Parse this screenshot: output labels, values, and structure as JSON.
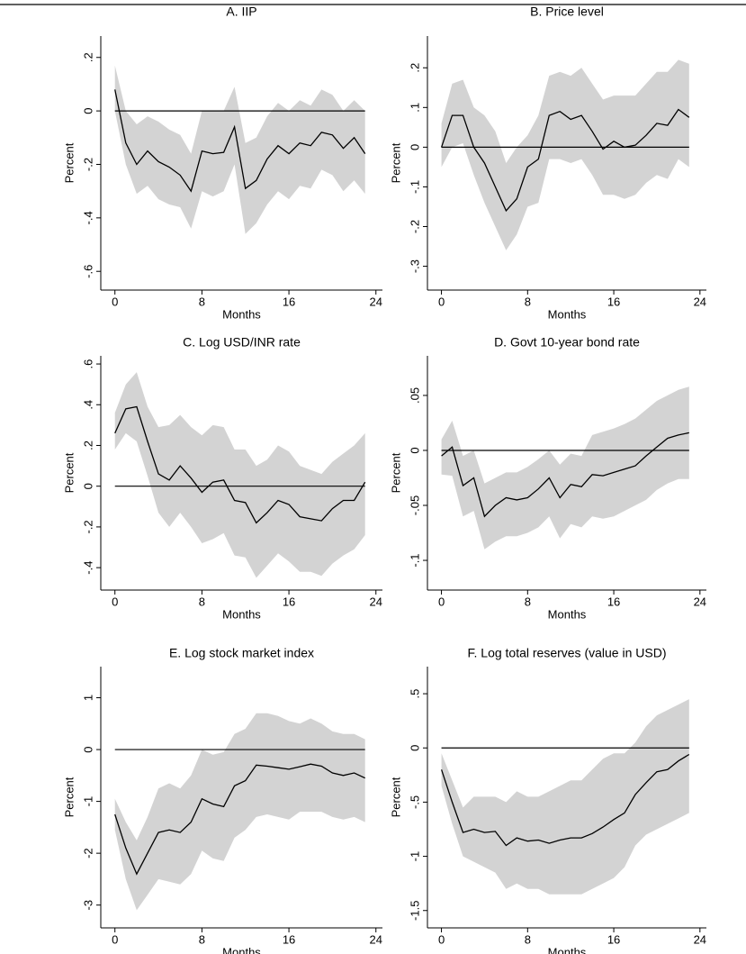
{
  "chart_data": [
    {
      "type": "line",
      "title": "A. IIP",
      "xlabel": "Months",
      "ylabel": "Percent",
      "x": [
        0,
        1,
        2,
        3,
        4,
        5,
        6,
        7,
        8,
        9,
        10,
        11,
        12,
        13,
        14,
        15,
        16,
        17,
        18,
        19,
        20,
        21,
        22,
        23
      ],
      "values": [
        0.08,
        -0.12,
        -0.2,
        -0.15,
        -0.19,
        -0.21,
        -0.24,
        -0.3,
        -0.15,
        -0.16,
        -0.155,
        -0.06,
        -0.29,
        -0.26,
        -0.18,
        -0.13,
        -0.16,
        -0.12,
        -0.13,
        -0.08,
        -0.09,
        -0.14,
        -0.1,
        -0.16
      ],
      "upper": [
        0.17,
        0.0,
        -0.05,
        -0.02,
        -0.04,
        -0.07,
        -0.09,
        -0.16,
        0.0,
        0.0,
        0.0,
        0.09,
        -0.12,
        -0.1,
        -0.02,
        0.03,
        0.0,
        0.04,
        0.02,
        0.08,
        0.06,
        0.0,
        0.04,
        0.0
      ],
      "lower": [
        0.0,
        -0.2,
        -0.31,
        -0.28,
        -0.33,
        -0.35,
        -0.36,
        -0.44,
        -0.3,
        -0.32,
        -0.3,
        -0.2,
        -0.46,
        -0.42,
        -0.35,
        -0.3,
        -0.33,
        -0.28,
        -0.29,
        -0.22,
        -0.24,
        -0.3,
        -0.26,
        -0.31
      ],
      "color": "#000000",
      "band_color": "#d3d3d3",
      "hline": 0,
      "xlim": [
        -1.3,
        24.6
      ],
      "xticks": [
        0,
        8,
        16,
        24
      ],
      "ylim": [
        -0.67,
        0.28
      ],
      "yticks": [
        {
          "value": 0.2,
          "label": ".2"
        },
        0,
        {
          "value": -0.2,
          "label": "-.2"
        },
        {
          "value": -0.4,
          "label": "-.4"
        },
        {
          "value": -0.6,
          "label": "-.6"
        }
      ]
    },
    {
      "type": "line",
      "title": "B. Price level",
      "xlabel": "Months",
      "ylabel": "Percent",
      "x": [
        0,
        1,
        2,
        3,
        4,
        5,
        6,
        7,
        8,
        9,
        10,
        11,
        12,
        13,
        14,
        15,
        16,
        17,
        18,
        19,
        20,
        21,
        22,
        23
      ],
      "values": [
        0,
        0.08,
        0.08,
        0,
        -0.04,
        -0.1,
        -0.16,
        -0.13,
        -0.05,
        -0.03,
        0.08,
        0.09,
        0.07,
        0.08,
        0.04,
        -0.005,
        0.015,
        0,
        0.005,
        0.03,
        0.06,
        0.055,
        0.095,
        0.075
      ],
      "upper": [
        0.06,
        0.16,
        0.17,
        0.1,
        0.08,
        0.04,
        -0.04,
        0,
        0.03,
        0.08,
        0.18,
        0.19,
        0.18,
        0.2,
        0.16,
        0.12,
        0.13,
        0.13,
        0.13,
        0.16,
        0.19,
        0.19,
        0.22,
        0.21
      ],
      "lower": [
        -0.05,
        0.0,
        0.01,
        -0.07,
        -0.14,
        -0.2,
        -0.26,
        -0.22,
        -0.15,
        -0.14,
        -0.03,
        -0.03,
        -0.04,
        -0.03,
        -0.07,
        -0.12,
        -0.12,
        -0.13,
        -0.12,
        -0.09,
        -0.07,
        -0.08,
        -0.03,
        -0.05
      ],
      "color": "#000000",
      "band_color": "#d3d3d3",
      "hline": 0,
      "xlim": [
        -1.3,
        24.6
      ],
      "xticks": [
        0,
        8,
        16,
        24
      ],
      "ylim": [
        -0.36,
        0.28
      ],
      "yticks": [
        {
          "value": 0.2,
          "label": ".2"
        },
        {
          "value": 0.1,
          "label": ".1"
        },
        0,
        {
          "value": -0.1,
          "label": "-.1"
        },
        {
          "value": -0.2,
          "label": "-.2"
        },
        {
          "value": -0.3,
          "label": "-.3"
        }
      ]
    },
    {
      "type": "line",
      "title": "C. Log USD/INR rate",
      "xlabel": "Months",
      "ylabel": "Percent",
      "x": [
        0,
        1,
        2,
        3,
        4,
        5,
        6,
        7,
        8,
        9,
        10,
        11,
        12,
        13,
        14,
        15,
        16,
        17,
        18,
        19,
        20,
        21,
        22,
        23
      ],
      "values": [
        0.26,
        0.38,
        0.39,
        0.22,
        0.06,
        0.03,
        0.1,
        0.04,
        -0.03,
        0.02,
        0.03,
        -0.07,
        -0.08,
        -0.18,
        -0.13,
        -0.07,
        -0.09,
        -0.15,
        -0.16,
        -0.17,
        -0.11,
        -0.07,
        -0.07,
        0.02
      ],
      "upper": [
        0.36,
        0.5,
        0.56,
        0.39,
        0.29,
        0.3,
        0.35,
        0.29,
        0.25,
        0.3,
        0.29,
        0.18,
        0.18,
        0.1,
        0.13,
        0.2,
        0.17,
        0.1,
        0.08,
        0.06,
        0.12,
        0.16,
        0.2,
        0.26
      ],
      "lower": [
        0.18,
        0.26,
        0.22,
        0.05,
        -0.13,
        -0.2,
        -0.13,
        -0.2,
        -0.28,
        -0.26,
        -0.23,
        -0.34,
        -0.35,
        -0.45,
        -0.39,
        -0.33,
        -0.37,
        -0.42,
        -0.42,
        -0.44,
        -0.38,
        -0.34,
        -0.31,
        -0.24
      ],
      "color": "#000000",
      "band_color": "#d3d3d3",
      "hline": 0,
      "xlim": [
        -1.3,
        24.6
      ],
      "xticks": [
        0,
        8,
        16,
        24
      ],
      "ylim": [
        -0.51,
        0.64
      ],
      "yticks": [
        {
          "value": 0.6,
          "label": ".6"
        },
        {
          "value": 0.4,
          "label": ".4"
        },
        {
          "value": 0.2,
          "label": ".2"
        },
        0,
        {
          "value": -0.2,
          "label": "-.2"
        },
        {
          "value": -0.4,
          "label": "-.4"
        }
      ]
    },
    {
      "type": "line",
      "title": "D. Govt 10-year bond rate",
      "xlabel": "Months",
      "ylabel": "Percent",
      "x": [
        0,
        1,
        2,
        3,
        4,
        5,
        6,
        7,
        8,
        9,
        10,
        11,
        12,
        13,
        14,
        15,
        16,
        17,
        18,
        19,
        20,
        21,
        22,
        23
      ],
      "values": [
        -0.005,
        0.003,
        -0.032,
        -0.025,
        -0.06,
        -0.05,
        -0.043,
        -0.045,
        -0.043,
        -0.035,
        -0.025,
        -0.043,
        -0.031,
        -0.033,
        -0.022,
        -0.023,
        -0.02,
        -0.017,
        -0.014,
        -0.005,
        0.003,
        0.011,
        0.014,
        0.016
      ],
      "upper": [
        0.01,
        0.027,
        -0.005,
        0.0,
        -0.03,
        -0.025,
        -0.02,
        -0.02,
        -0.015,
        -0.008,
        0,
        -0.013,
        -0.003,
        -0.005,
        0.014,
        0.017,
        0.02,
        0.024,
        0.029,
        0.037,
        0.045,
        0.05,
        0.055,
        0.058
      ],
      "lower": [
        -0.022,
        -0.023,
        -0.06,
        -0.055,
        -0.09,
        -0.083,
        -0.078,
        -0.078,
        -0.075,
        -0.07,
        -0.06,
        -0.08,
        -0.067,
        -0.07,
        -0.06,
        -0.062,
        -0.06,
        -0.055,
        -0.05,
        -0.045,
        -0.036,
        -0.03,
        -0.026,
        -0.026
      ],
      "color": "#000000",
      "band_color": "#d3d3d3",
      "hline": 0,
      "xlim": [
        -1.3,
        24.6
      ],
      "xticks": [
        0,
        8,
        16,
        24
      ],
      "ylim": [
        -0.127,
        0.086
      ],
      "yticks": [
        {
          "value": 0.05,
          "label": ".05"
        },
        0,
        {
          "value": -0.05,
          "label": "-.05"
        },
        {
          "value": -0.1,
          "label": "-.1"
        }
      ]
    },
    {
      "type": "line",
      "title": "E. Log stock market index",
      "xlabel": "Months",
      "ylabel": "Percent",
      "x": [
        0,
        1,
        2,
        3,
        4,
        5,
        6,
        7,
        8,
        9,
        10,
        11,
        12,
        13,
        14,
        15,
        16,
        17,
        18,
        19,
        20,
        21,
        22,
        23
      ],
      "values": [
        -1.25,
        -1.9,
        -2.4,
        -2.0,
        -1.6,
        -1.55,
        -1.6,
        -1.4,
        -0.95,
        -1.05,
        -1.1,
        -0.7,
        -0.6,
        -0.3,
        -0.32,
        -0.35,
        -0.38,
        -0.33,
        -0.28,
        -0.32,
        -0.45,
        -0.5,
        -0.45,
        -0.55
      ],
      "upper": [
        -0.95,
        -1.4,
        -1.75,
        -1.3,
        -0.75,
        -0.65,
        -0.75,
        -0.5,
        0.0,
        -0.1,
        -0.05,
        0.3,
        0.4,
        0.7,
        0.7,
        0.65,
        0.55,
        0.5,
        0.6,
        0.5,
        0.35,
        0.3,
        0.3,
        0.2
      ],
      "lower": [
        -1.55,
        -2.5,
        -3.1,
        -2.8,
        -2.5,
        -2.55,
        -2.6,
        -2.4,
        -1.95,
        -2.1,
        -2.15,
        -1.7,
        -1.55,
        -1.3,
        -1.25,
        -1.3,
        -1.35,
        -1.2,
        -1.2,
        -1.2,
        -1.3,
        -1.35,
        -1.3,
        -1.4
      ],
      "color": "#000000",
      "band_color": "#d3d3d3",
      "hline": 0,
      "xlim": [
        -1.3,
        24.6
      ],
      "xticks": [
        0,
        8,
        16,
        24
      ],
      "ylim": [
        -3.44,
        1.6
      ],
      "yticks": [
        1,
        0,
        -1,
        -2,
        -3
      ]
    },
    {
      "type": "line",
      "title": "F. Log total reserves (value in USD)",
      "xlabel": "Months",
      "ylabel": "Percent",
      "x": [
        0,
        1,
        2,
        3,
        4,
        5,
        6,
        7,
        8,
        9,
        10,
        11,
        12,
        13,
        14,
        15,
        16,
        17,
        18,
        19,
        20,
        21,
        22,
        23
      ],
      "values": [
        -0.2,
        -0.5,
        -0.78,
        -0.75,
        -0.78,
        -0.77,
        -0.9,
        -0.83,
        -0.86,
        -0.85,
        -0.88,
        -0.85,
        -0.83,
        -0.83,
        -0.79,
        -0.73,
        -0.66,
        -0.6,
        -0.43,
        -0.32,
        -0.22,
        -0.2,
        -0.12,
        -0.06
      ],
      "upper": [
        -0.05,
        -0.3,
        -0.55,
        -0.45,
        -0.45,
        -0.45,
        -0.5,
        -0.4,
        -0.45,
        -0.45,
        -0.4,
        -0.35,
        -0.3,
        -0.3,
        -0.2,
        -0.1,
        -0.05,
        -0.05,
        0.05,
        0.2,
        0.3,
        0.35,
        0.4,
        0.45
      ],
      "lower": [
        -0.35,
        -0.7,
        -1.0,
        -1.05,
        -1.1,
        -1.15,
        -1.3,
        -1.25,
        -1.3,
        -1.3,
        -1.35,
        -1.35,
        -1.35,
        -1.35,
        -1.3,
        -1.25,
        -1.2,
        -1.1,
        -0.9,
        -0.8,
        -0.75,
        -0.7,
        -0.65,
        -0.6
      ],
      "color": "#000000",
      "band_color": "#d3d3d3",
      "hline": 0,
      "xlim": [
        -1.3,
        24.6
      ],
      "xticks": [
        0,
        8,
        16,
        24
      ],
      "ylim": [
        -1.66,
        0.75
      ],
      "yticks": [
        {
          "value": 0.5,
          "label": ".5"
        },
        0,
        {
          "value": -0.5,
          "label": "-.5"
        },
        {
          "value": -1,
          "label": "-1"
        },
        {
          "value": -1.5,
          "label": "-1.5"
        }
      ]
    }
  ]
}
